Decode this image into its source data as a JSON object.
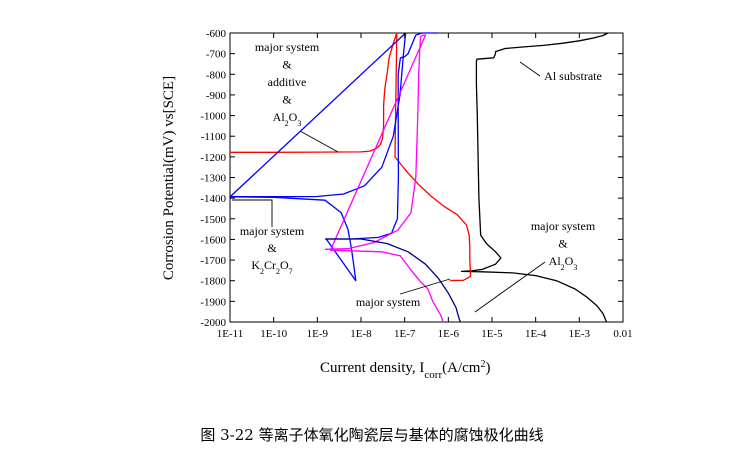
{
  "figure_caption": "图 3-22  等离子体氧化陶瓷层与基体的腐蚀极化曲线",
  "chart_data": {
    "type": "line",
    "title": "",
    "xlabel": "Current density, I",
    "xlabel_sub": "corr",
    "xlabel_unit": "(A/cm",
    "xlabel_sup": "2",
    "xlabel_close": ")",
    "ylabel": "Corrosion Potential(mV)  vs[SCE]",
    "x_scale": "log",
    "xlim": [
      1e-11,
      0.01
    ],
    "ylim": [
      -2000,
      -600
    ],
    "grid": false,
    "x_ticks": [
      1e-11,
      1e-10,
      1e-09,
      1e-08,
      1e-07,
      1e-06,
      1e-05,
      0.0001,
      0.001,
      0.01
    ],
    "x_tick_labels": [
      "1E-11",
      "1E-10",
      "1E-9",
      "1E-8",
      "1E-7",
      "1E-6",
      "1E-5",
      "1E-4",
      "1E-3",
      "0.01"
    ],
    "y_ticks": [
      -600,
      -700,
      -800,
      -900,
      -1000,
      -1100,
      -1200,
      -1300,
      -1400,
      -1500,
      -1600,
      -1700,
      -1800,
      -1900,
      -2000
    ],
    "y_tick_labels": [
      "-600",
      "-700",
      "-800",
      "-900",
      "-1000",
      "-1100",
      "-1200",
      "-1300",
      "-1400",
      "-1500",
      "-1600",
      "-1700",
      "-1800",
      "-1900",
      "-2000"
    ],
    "series": [
      {
        "color": "#000000",
        "points": [
          [
            0.0045,
            -600
          ],
          [
            0.0035,
            -612
          ],
          [
            0.002,
            -625
          ],
          [
            0.001,
            -638
          ],
          [
            0.0004,
            -650
          ],
          [
            0.00015,
            -660
          ],
          [
            5e-05,
            -668
          ],
          [
            2e-05,
            -675
          ],
          [
            1.2e-05,
            -690
          ],
          [
            1.2e-05,
            -700
          ],
          [
            1.1e-05,
            -720
          ],
          [
            4.5e-06,
            -727
          ],
          [
            4.4e-06,
            -740
          ],
          [
            4.4e-06,
            -850
          ],
          [
            4.6e-06,
            -1000
          ],
          [
            4.8e-06,
            -1200
          ],
          [
            5e-06,
            -1400
          ],
          [
            5.5e-06,
            -1580
          ],
          [
            7.5e-06,
            -1620
          ],
          [
            1.2e-05,
            -1660
          ],
          [
            1.6e-05,
            -1690
          ],
          [
            1.2e-05,
            -1720
          ],
          [
            6e-06,
            -1745
          ],
          [
            3.5e-06,
            -1752
          ],
          [
            2e-06,
            -1755
          ],
          [
            6e-06,
            -1757
          ],
          [
            3e-05,
            -1762
          ],
          [
            0.0001,
            -1775
          ],
          [
            0.0003,
            -1800
          ],
          [
            0.0008,
            -1840
          ],
          [
            0.0015,
            -1880
          ],
          [
            0.0025,
            -1920
          ],
          [
            0.0035,
            -1960
          ],
          [
            0.0042,
            -2000
          ]
        ]
      },
      {
        "color": "#ff0000",
        "points": [
          [
            1e-11,
            -1178
          ],
          [
            1e-10,
            -1178
          ],
          [
            1e-09,
            -1177
          ],
          [
            1e-08,
            -1176
          ],
          [
            1.6e-08,
            -1172
          ],
          [
            2.2e-08,
            -1160
          ],
          [
            2.8e-08,
            -1140
          ],
          [
            3.1e-08,
            -1110
          ],
          [
            3.3e-08,
            -1050
          ],
          [
            3.3e-08,
            -950
          ],
          [
            3.5e-08,
            -870
          ],
          [
            4e-08,
            -790
          ],
          [
            4.4e-08,
            -720
          ],
          [
            5.5e-08,
            -650
          ],
          [
            6.6e-08,
            -600
          ],
          [
            6e-08,
            -1200
          ],
          [
            1.1e-07,
            -1270
          ],
          [
            2e-07,
            -1330
          ],
          [
            4e-07,
            -1390
          ],
          [
            8e-07,
            -1440
          ],
          [
            1.6e-06,
            -1480
          ],
          [
            2.6e-06,
            -1530
          ],
          [
            3e-06,
            -1580
          ],
          [
            3.1e-06,
            -1640
          ],
          [
            3.1e-06,
            -1700
          ],
          [
            3.2e-06,
            -1750
          ],
          [
            3.2e-06,
            -1780
          ],
          [
            2.2e-06,
            -1798
          ],
          [
            1.1e-06,
            -1799
          ]
        ]
      },
      {
        "color": "#0000ff",
        "points": [
          [
            1e-11,
            -1393
          ],
          [
            1e-10,
            -1393
          ],
          [
            1e-09,
            -1392
          ],
          [
            4e-09,
            -1380
          ],
          [
            1.2e-08,
            -1340
          ],
          [
            3e-08,
            -1250
          ],
          [
            5.5e-08,
            -1100
          ],
          [
            7.8e-08,
            -900
          ],
          [
            9.4e-08,
            -700
          ],
          [
            1.05e-07,
            -600
          ],
          [
            1e-11,
            -1394
          ],
          [
            1e-10,
            -1396
          ],
          [
            1.5e-09,
            -1410
          ],
          [
            3.5e-09,
            -1470
          ],
          [
            5e-09,
            -1550
          ],
          [
            6e-09,
            -1640
          ],
          [
            7e-09,
            -1740
          ],
          [
            7.6e-09,
            -1800
          ],
          [
            1.6e-09,
            -1598
          ],
          [
            6e-09,
            -1598
          ],
          [
            2.5e-08,
            -1590
          ],
          [
            5e-08,
            -1570
          ],
          [
            6.8e-08,
            -1500
          ],
          [
            7.2e-08,
            -1300
          ],
          [
            7.1e-08,
            -1000
          ],
          [
            7.1e-08,
            -800
          ],
          [
            8e-08,
            -720
          ],
          [
            1e-07,
            -715
          ],
          [
            1.2e-07,
            -700
          ],
          [
            1.8e-07,
            -610
          ],
          [
            2.5e-07,
            -600
          ],
          [
            3e-07,
            -600
          ],
          [
            6e-07,
            -600
          ]
        ]
      },
      {
        "color": "#ff00ff",
        "points": [
          [
            1.5e-09,
            -1648
          ],
          [
            5e-09,
            -1645
          ],
          [
            2e-08,
            -1615
          ],
          [
            7e-08,
            -1555
          ],
          [
            1.4e-07,
            -1470
          ],
          [
            1.8e-07,
            -1300
          ],
          [
            2e-07,
            -1000
          ],
          [
            2.1e-07,
            -800
          ],
          [
            2.2e-07,
            -700
          ],
          [
            2.3e-07,
            -620
          ],
          [
            2.6e-07,
            -610
          ],
          [
            3e-07,
            -610
          ],
          [
            2e-09,
            -1652
          ],
          [
            3e-08,
            -1660
          ],
          [
            8e-08,
            -1680
          ],
          [
            1.3e-07,
            -1740
          ],
          [
            2.2e-07,
            -1800
          ],
          [
            3.4e-07,
            -1840
          ],
          [
            4.4e-07,
            -1900
          ],
          [
            6.8e-07,
            -1970
          ],
          [
            7.5e-07,
            -2000
          ]
        ]
      },
      {
        "color": "#000080",
        "points": [
          [
            1.5e-09,
            -1598
          ],
          [
            1e-08,
            -1598
          ],
          [
            4e-08,
            -1620
          ],
          [
            1.2e-07,
            -1660
          ],
          [
            3e-07,
            -1720
          ],
          [
            6e-07,
            -1790
          ],
          [
            1e-06,
            -1860
          ],
          [
            1.5e-06,
            -1930
          ],
          [
            1.8e-06,
            -1990
          ],
          [
            1.9e-06,
            -2000
          ]
        ]
      }
    ],
    "annotations": [
      {
        "lines": [
          [
            "major system"
          ],
          [
            "&"
          ],
          [
            "additive"
          ],
          [
            "&"
          ],
          [
            "Al",
            "2",
            "O",
            "3"
          ]
        ]
      },
      {
        "lines": [
          [
            "major system"
          ],
          [
            "&"
          ],
          [
            "K",
            "2",
            "Cr",
            "2",
            "O",
            "7"
          ]
        ]
      },
      {
        "lines": [
          [
            "major system"
          ]
        ]
      },
      {
        "lines": [
          [
            "major system"
          ],
          [
            "&"
          ],
          [
            "Al",
            "2",
            "O",
            "3"
          ]
        ]
      },
      {
        "lines": [
          [
            "Al substrate"
          ]
        ]
      }
    ]
  }
}
